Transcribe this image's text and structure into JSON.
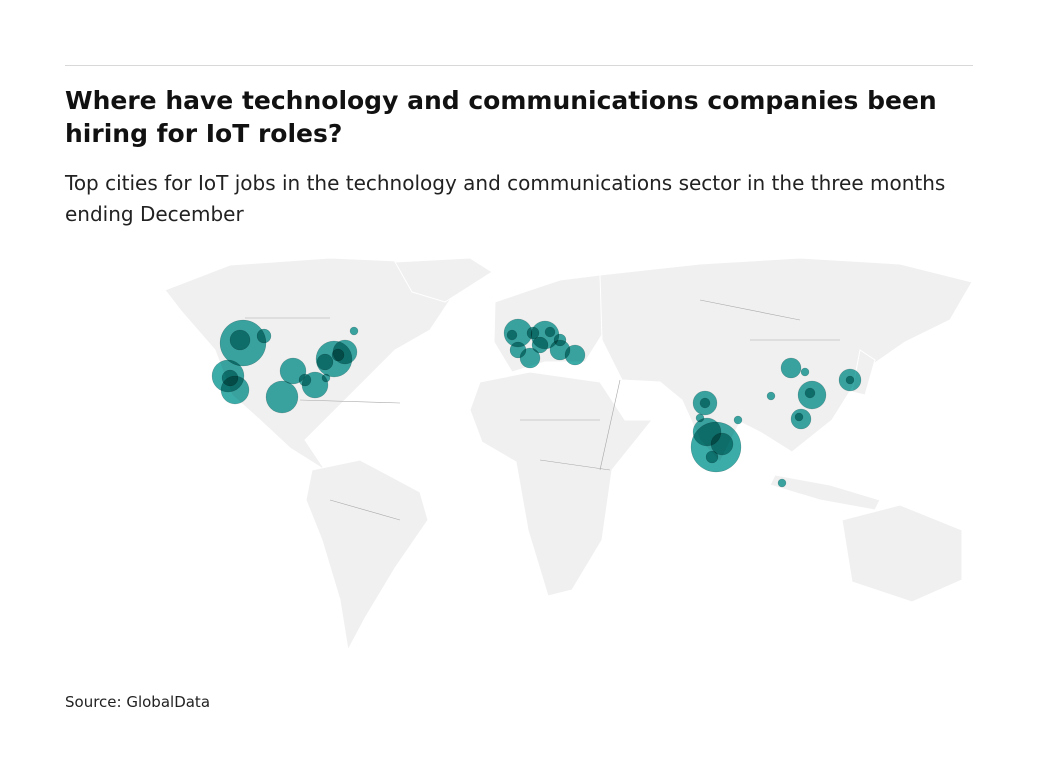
{
  "header": {
    "title": "Where have technology and communications companies been hiring for IoT roles?",
    "subtitle": "Top cities for IoT jobs in the technology and communications sector in the three months ending December"
  },
  "map": {
    "type": "bubble-map",
    "land_color": "#f0f0f0",
    "border_color": "#a8a8a8",
    "bubble_color": "#1a9e9a"
  },
  "footer": {
    "source": "Source: GlobalData"
  }
}
